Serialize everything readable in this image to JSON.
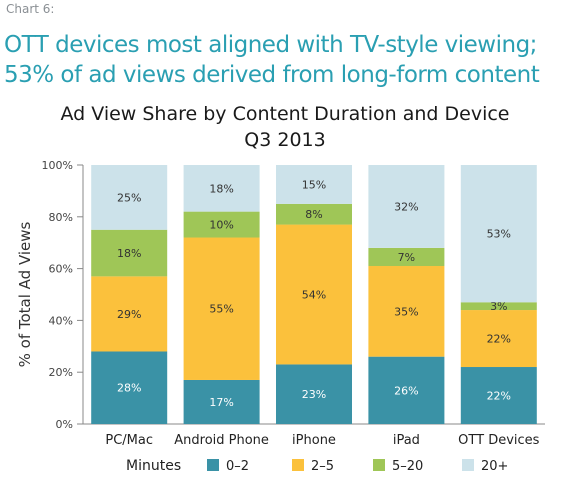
{
  "chart_label": "Chart 6:",
  "headline": {
    "line1": "OTT devices most aligned with TV-style viewing;",
    "line2": "53% of ad views derived from long-form content"
  },
  "chart_data": {
    "type": "bar",
    "stacked": true,
    "title": "Ad View Share by Content Duration and Device",
    "subtitle": "Q3 2013",
    "xlabel": "",
    "ylabel": "% of Total Ad Views",
    "ylim": [
      0,
      100
    ],
    "yticks": [
      "0%",
      "20%",
      "40%",
      "60%",
      "80%",
      "100%"
    ],
    "categories": [
      "PC/Mac",
      "Android Phone",
      "iPhone",
      "iPad",
      "OTT Devices"
    ],
    "legend_title": "Minutes",
    "legend_position": "bottom",
    "grid": false,
    "series": [
      {
        "name": "0–2",
        "color": "#3a92a6",
        "values": [
          28,
          17,
          23,
          26,
          22
        ],
        "labels": [
          "28%",
          "17%",
          "23%",
          "26%",
          "22%"
        ]
      },
      {
        "name": "2–5",
        "color": "#fbc13c",
        "values": [
          29,
          55,
          54,
          35,
          22
        ],
        "labels": [
          "29%",
          "55%",
          "54%",
          "35%",
          "22%"
        ]
      },
      {
        "name": "5–20",
        "color": "#9fc657",
        "values": [
          18,
          10,
          8,
          7,
          3
        ],
        "labels": [
          "18%",
          "10%",
          "8%",
          "7%",
          "3%"
        ]
      },
      {
        "name": "20+",
        "color": "#cce2ea",
        "values": [
          25,
          18,
          15,
          32,
          53
        ],
        "labels": [
          "25%",
          "18%",
          "15%",
          "32%",
          "53%"
        ]
      }
    ]
  }
}
